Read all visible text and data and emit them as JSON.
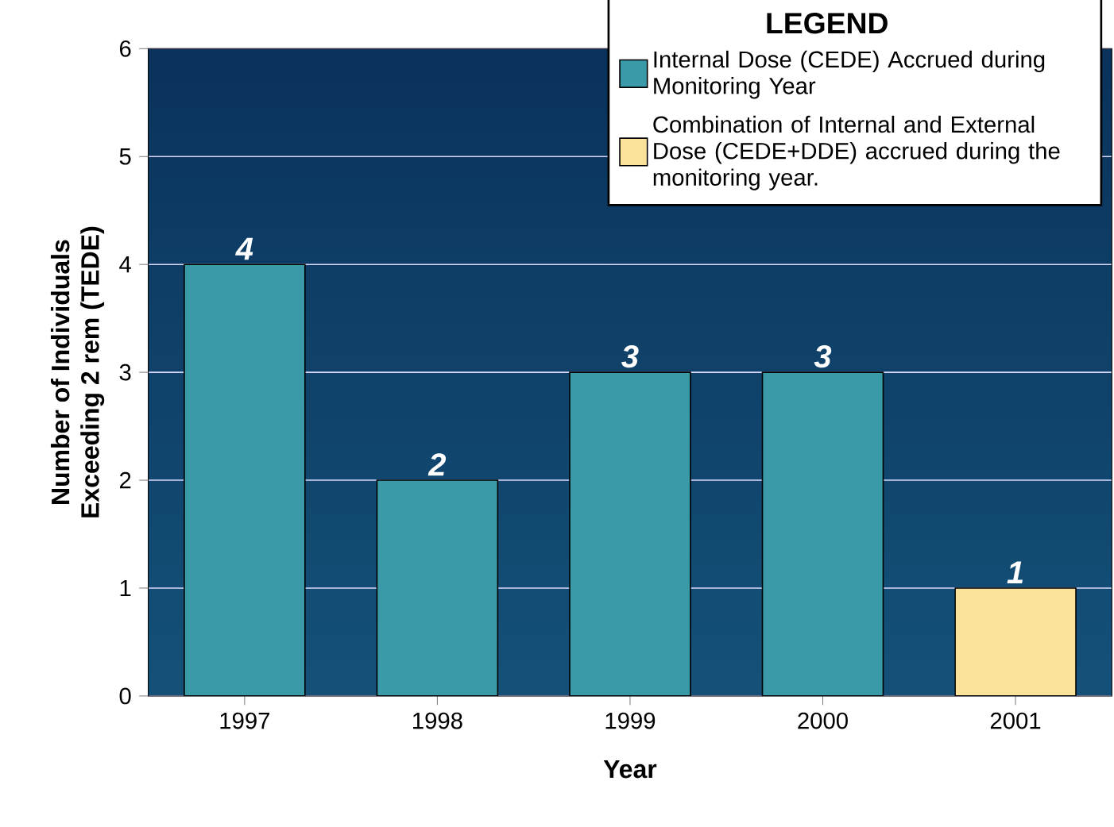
{
  "chart_data": {
    "type": "bar",
    "xlabel": "Year",
    "ylabel": "Number of Individuals\nExceeding 2 rem (TEDE)",
    "legend_title": "LEGEND",
    "categories": [
      "1997",
      "1998",
      "1999",
      "2000",
      "2001"
    ],
    "series": [
      {
        "name": "Internal Dose (CEDE) Accrued during Monitoring Year",
        "color": "#3a9aa8",
        "values": [
          4,
          2,
          3,
          3,
          null
        ]
      },
      {
        "name": "Combination of Internal and External Dose (CEDE+DDE) accrued during the monitoring year.",
        "color": "#fbe29a",
        "values": [
          null,
          null,
          null,
          null,
          1
        ]
      }
    ],
    "ylim": [
      0,
      6
    ],
    "yticks": [
      0,
      1,
      2,
      3,
      4,
      5,
      6
    ],
    "grid": "y",
    "legend": "top right",
    "data_labels": true
  }
}
